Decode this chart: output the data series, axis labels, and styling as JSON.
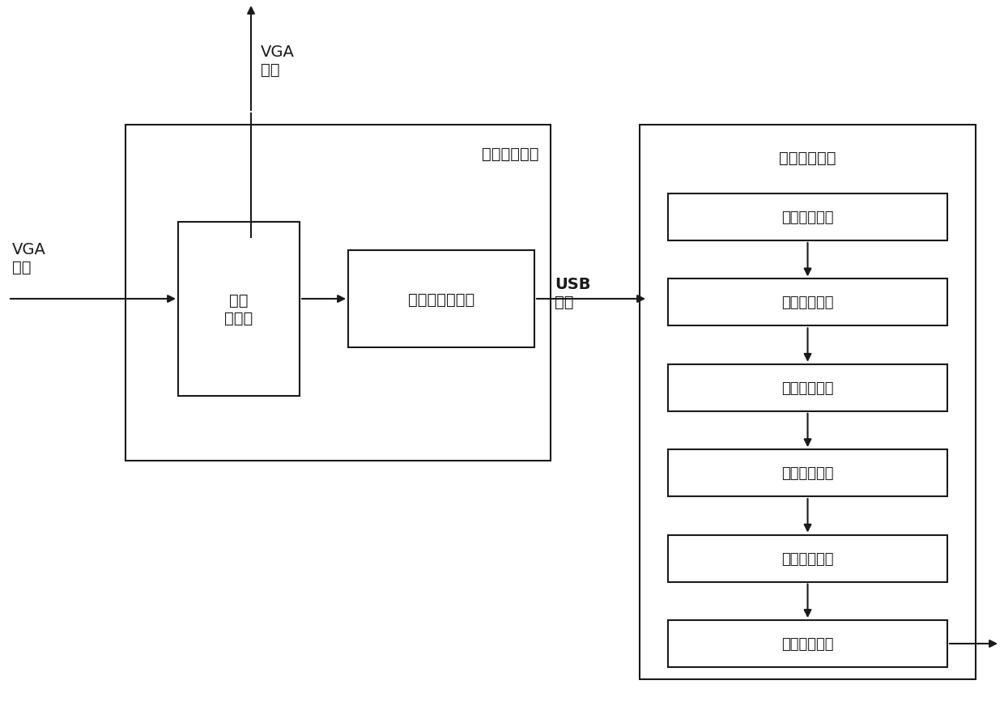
{
  "bg_color": "#ffffff",
  "vga_signal_top_label": "VGA\n信号",
  "vga_signal_left_label": "VGA\n信号",
  "usb_signal_label": "USB\n信号",
  "info_analysis_device_label": "信息分析装置",
  "char_recognition_device_label": "字符识别装置",
  "signal_duplicator_label": "信号\n复制器",
  "signal_analyzer_label": "信号分析转换器",
  "modules": [
    "图形抓取模块",
    "图形分割模块",
    "字符识别模块",
    "图形对比模块",
    "文件管理模块",
    "文件输出模块"
  ],
  "font_size_label": 14,
  "font_size_module": 13,
  "font_size_device": 14,
  "line_color": "#1a1a1a",
  "box_color": "#ffffff",
  "box_edge_color": "#1a1a1a",
  "line_width": 1.5
}
